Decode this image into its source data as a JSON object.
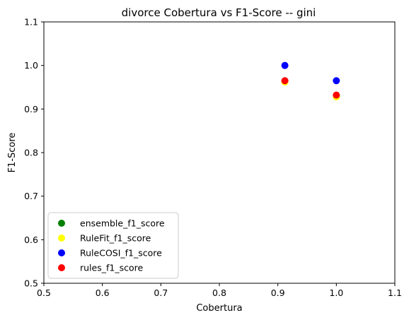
{
  "chart_data": {
    "type": "scatter",
    "title": "divorce Cobertura vs F1-Score -- gini",
    "xlabel": "Cobertura",
    "ylabel": "F1-Score",
    "xlim": [
      0.5,
      1.1
    ],
    "ylim": [
      0.5,
      1.1
    ],
    "xticks": [
      0.5,
      0.6,
      0.7,
      0.8,
      0.9,
      1.0,
      1.1
    ],
    "yticks": [
      0.5,
      0.6,
      0.7,
      0.8,
      0.9,
      1.0,
      1.1
    ],
    "xtick_labels": [
      "0.5",
      "0.6",
      "0.7",
      "0.8",
      "0.9",
      "1.0",
      "1.1"
    ],
    "ytick_labels": [
      "0.5",
      "0.6",
      "0.7",
      "0.8",
      "0.9",
      "1.0",
      "1.1"
    ],
    "grid": false,
    "legend_position": "lower-left",
    "series": [
      {
        "name": "ensemble_f1_score",
        "color": "#008000",
        "x": [
          0.912,
          1.0
        ],
        "y": [
          0.963,
          0.93
        ]
      },
      {
        "name": "RuleFit_f1_score",
        "color": "#ffff00",
        "x": [
          0.912,
          1.0
        ],
        "y": [
          0.962,
          0.928
        ]
      },
      {
        "name": "RuleCOSI_f1_score",
        "color": "#0000ff",
        "x": [
          0.912,
          1.0
        ],
        "y": [
          1.0,
          0.965
        ]
      },
      {
        "name": "rules_f1_score",
        "color": "#ff0000",
        "x": [
          0.912,
          1.0
        ],
        "y": [
          0.965,
          0.932
        ]
      }
    ]
  }
}
